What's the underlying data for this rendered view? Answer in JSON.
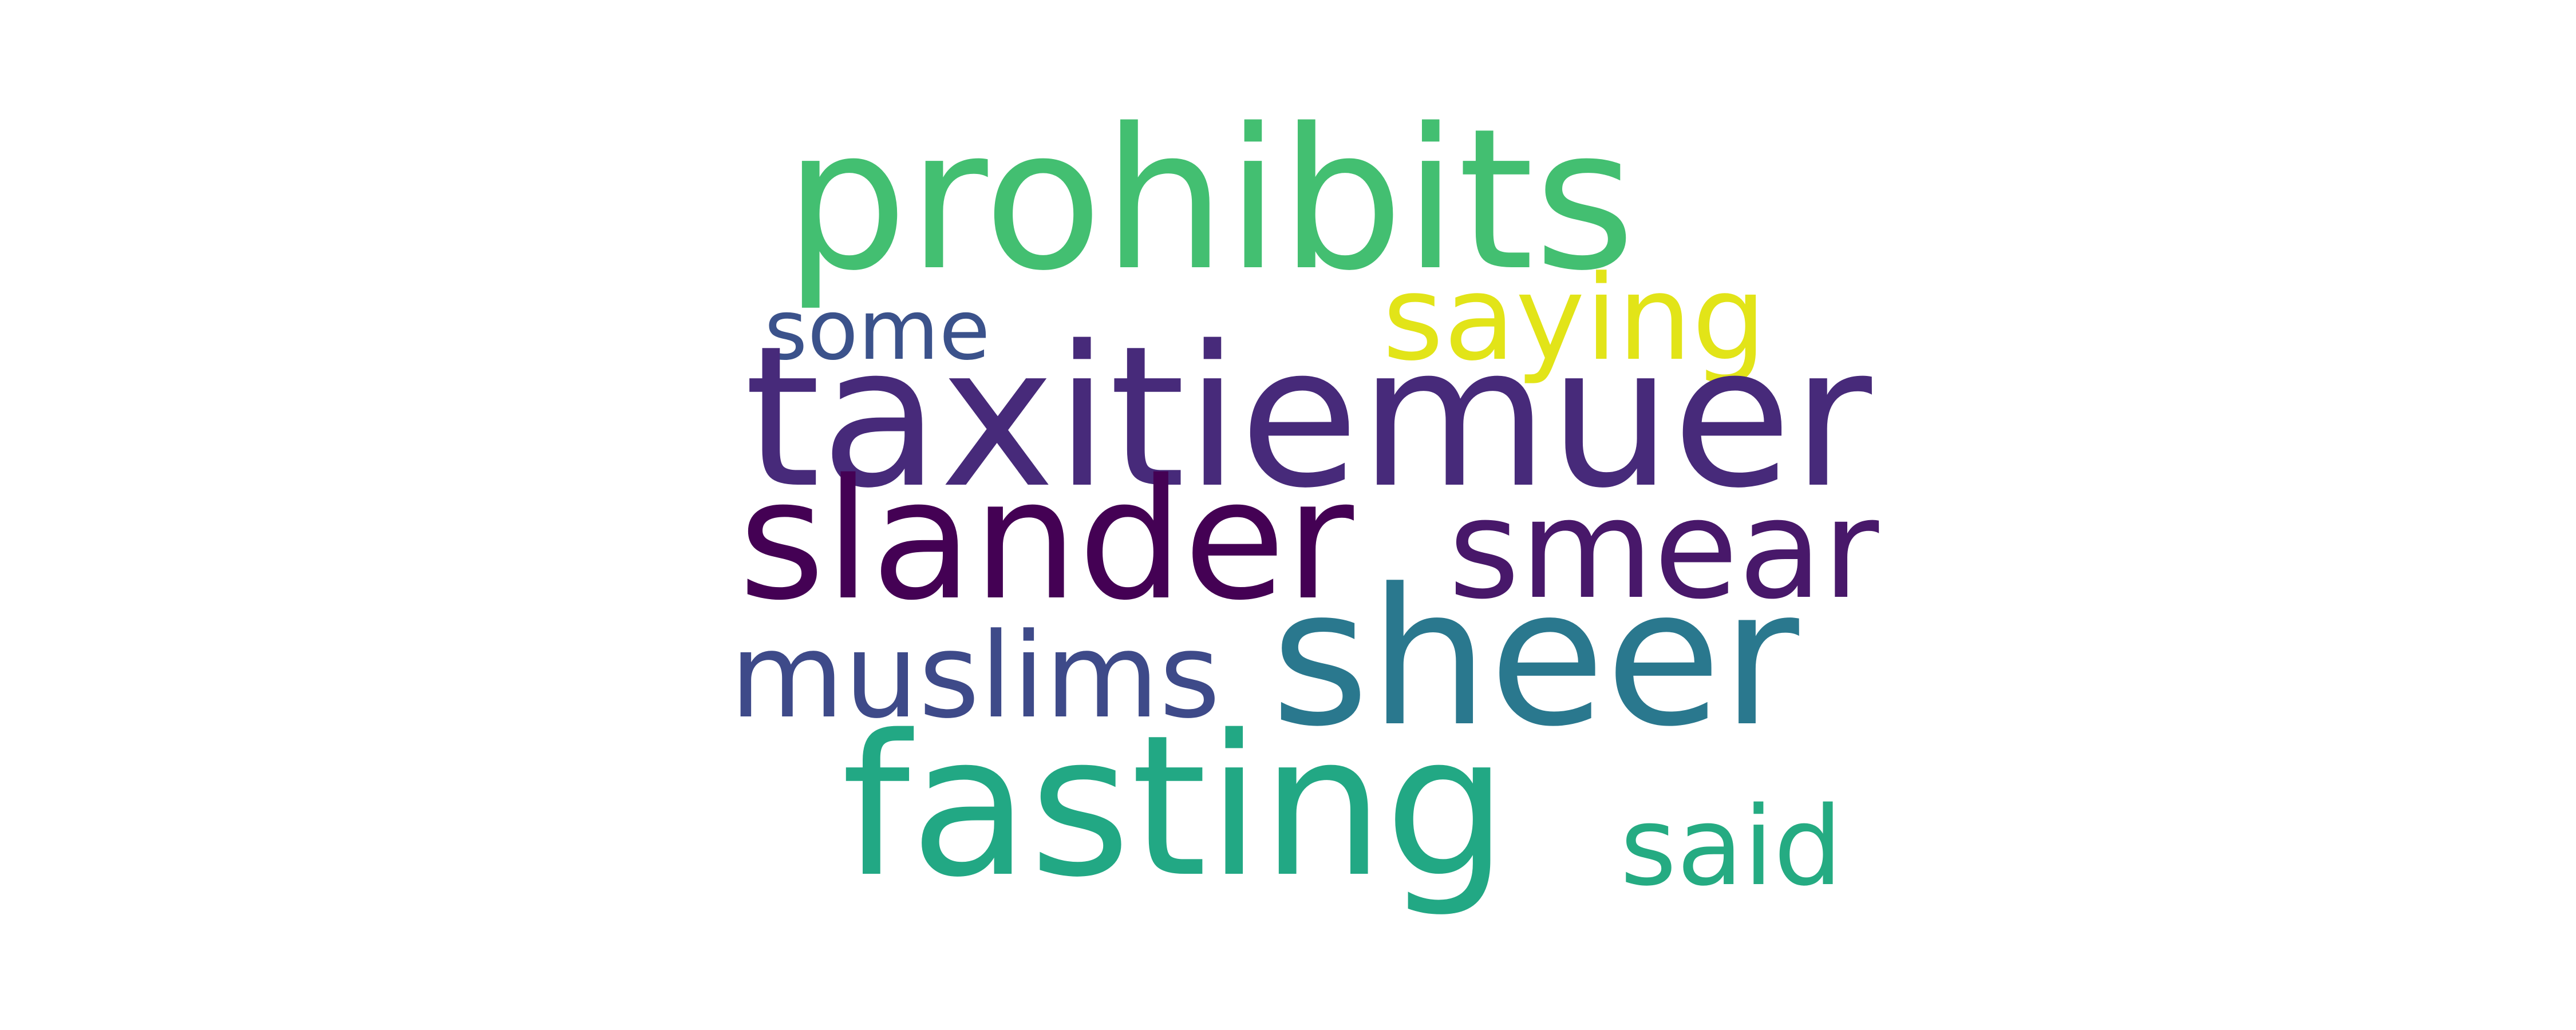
{
  "words": [
    {
      "text": "prohibits",
      "color": "#43bf71"
    },
    {
      "text": "some",
      "color": "#3b528b"
    },
    {
      "text": "saying",
      "color": "#e2e418"
    },
    {
      "text": "taxitiemuer",
      "color": "#472a7a"
    },
    {
      "text": "slander",
      "color": "#440154"
    },
    {
      "text": "smear",
      "color": "#48186a"
    },
    {
      "text": "muslims",
      "color": "#3e4a89"
    },
    {
      "text": "sheer",
      "color": "#2a788e"
    },
    {
      "text": "fasting",
      "color": "#22a884"
    },
    {
      "text": "said",
      "color": "#25ab82"
    }
  ]
}
